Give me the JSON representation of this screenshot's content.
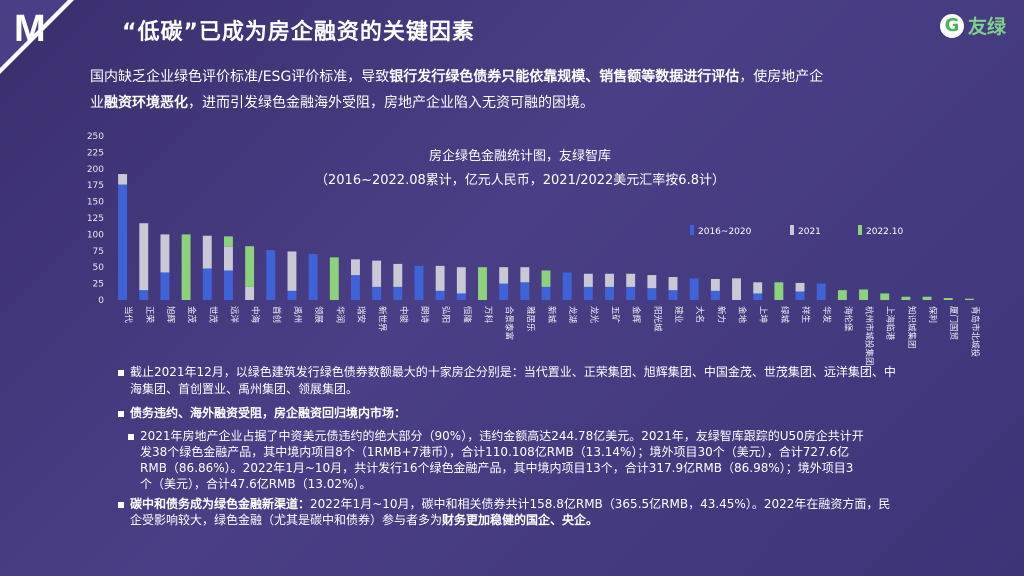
{
  "badge": "M",
  "title": "“低碳”已成为房企融资的关键因素",
  "logo": {
    "icon_text": "G",
    "brand": "友绿"
  },
  "intro": {
    "p1": "国内缺乏企业绿色评价标准/ESG评价标准，导致",
    "b1": "银行发行绿色债券只能依靠规模、销售额等数据进行评估",
    "p2": "，使房地产企",
    "p3": "业",
    "b2": "融资环境恶化",
    "p4": "，进而引发绿色金融海外受阻，房地产企业陷入无资可融的困境。"
  },
  "chart_data": {
    "type": "bar",
    "title": "房企绿色金融统计图，友绿智库",
    "subtitle": "（2016~2022.08累计，亿元人民币，2021/2022美元汇率按6.8计）",
    "ylim": [
      0,
      250
    ],
    "yticks": [
      0,
      25,
      50,
      75,
      100,
      125,
      150,
      175,
      200,
      225,
      250
    ],
    "stacked": true,
    "legend_position": "top-right",
    "categories": [
      "当代",
      "正荣",
      "旭辉",
      "金茂",
      "世茂",
      "远洋",
      "中海",
      "首创",
      "禹州",
      "领展",
      "华润",
      "瑞安",
      "新世界",
      "中骏",
      "朗诗",
      "弘阳",
      "恒隆",
      "万科",
      "合景泰富",
      "雅居乐",
      "新城",
      "龙湖",
      "龙光",
      "五矿",
      "金辉",
      "阳光城",
      "建业",
      "大名",
      "新力",
      "金地",
      "上坤",
      "绿城",
      "祥生",
      "华发",
      "海伦堡",
      "杭州市城投集团",
      "上海临港",
      "知识城集团",
      "保利",
      "厦门国贸",
      "青岛市北城投"
    ],
    "series": [
      {
        "name": "2016~2020",
        "color": "#3f63d6",
        "values": [
          176,
          15,
          42,
          0,
          48,
          45,
          0,
          76,
          14,
          70,
          0,
          38,
          20,
          20,
          52,
          14,
          10,
          0,
          25,
          27,
          20,
          42,
          20,
          20,
          20,
          18,
          15,
          33,
          14,
          0,
          10,
          0,
          13,
          25,
          0,
          0,
          0,
          0,
          0,
          0,
          0
        ]
      },
      {
        "name": "2021",
        "color": "#c9c9d6",
        "values": [
          16,
          102,
          58,
          0,
          50,
          36,
          20,
          0,
          60,
          0,
          0,
          24,
          40,
          35,
          0,
          38,
          40,
          0,
          25,
          23,
          0,
          0,
          20,
          20,
          20,
          20,
          20,
          0,
          18,
          33,
          17,
          0,
          13,
          0,
          0,
          0,
          0,
          0,
          0,
          0,
          0
        ]
      },
      {
        "name": "2022.10",
        "color": "#8dd17d",
        "values": [
          0,
          0,
          0,
          100,
          0,
          16,
          62,
          0,
          0,
          0,
          65,
          0,
          0,
          0,
          0,
          0,
          0,
          50,
          0,
          0,
          25,
          0,
          0,
          0,
          0,
          0,
          0,
          0,
          0,
          0,
          0,
          27,
          0,
          0,
          15,
          16,
          10,
          5,
          5,
          3,
          2
        ]
      }
    ]
  },
  "bullets": {
    "b1": "截止2021年12月，以绿色建筑发行绿色债券数额最大的十家房企分别是：当代置业、正荣集团、旭辉集团、中国金茂、世茂集团、远洋集团、中",
    "b1_l2": "海集团、首创置业、禹州集团、领展集团。",
    "b2": "债务违约、海外融资受阻，房企融资回归境内市场：",
    "b3_l1": "2021年房地产企业占据了中资美元债违约的绝大部分（90%），违约金额高达244.78亿美元。2021年，友绿智库跟踪的U50房企共计开",
    "b3_l2": "发38个绿色金融产品，其中境内项目8个（1RMB+7港币），合计110.108亿RMB（13.14%）；境外项目30个（美元），合计727.6亿",
    "b3_l3": "RMB（86.86%）。2022年1月~10月，共计发行16个绿色金融产品，其中境内项目13个，合计317.9亿RMB（86.98%）；境外项目3",
    "b3_l4": "个（美元），合计47.6亿RMB（13.02%）。",
    "b4_bold": "碳中和债务成为绿色金融新渠道：",
    "b4_l1": "2022年1月~10月，碳中和相关债券共计158.8亿RMB（365.5亿RMB，43.45%）。2022年在融资方面，民",
    "b4_l2a": "企受影响较大，绿色金融（尤其是碳中和债券）参与者多为",
    "b4_l2b": "财务更加稳健的国企、央企。"
  }
}
